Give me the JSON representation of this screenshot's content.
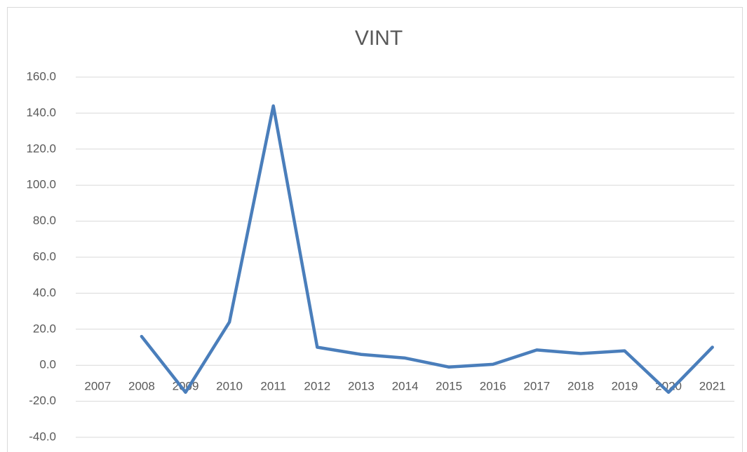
{
  "chart_data": {
    "type": "line",
    "title": "VINT",
    "categories": [
      "2007",
      "2008",
      "2009",
      "2010",
      "2011",
      "2012",
      "2013",
      "2014",
      "2015",
      "2016",
      "2017",
      "2018",
      "2019",
      "2020",
      "2021"
    ],
    "series": [
      {
        "name": "VINT",
        "color": "#4a7ebb",
        "values": [
          null,
          16,
          -15,
          24,
          144,
          10,
          6,
          4,
          -1,
          0.5,
          8.5,
          6.5,
          8,
          -15,
          10
        ]
      }
    ],
    "ylim": [
      -40,
      160
    ],
    "yticks": [
      {
        "value": -40,
        "label": "-40.0"
      },
      {
        "value": -20,
        "label": "-20.0"
      },
      {
        "value": 0,
        "label": "0.0"
      },
      {
        "value": 20,
        "label": "20.0"
      },
      {
        "value": 40,
        "label": "40.0"
      },
      {
        "value": 60,
        "label": "60.0"
      },
      {
        "value": 80,
        "label": "80.0"
      },
      {
        "value": 100,
        "label": "100.0"
      },
      {
        "value": 120,
        "label": "120.0"
      },
      {
        "value": 140,
        "label": "140.0"
      },
      {
        "value": 160,
        "label": "160.0"
      }
    ],
    "grid": true
  }
}
